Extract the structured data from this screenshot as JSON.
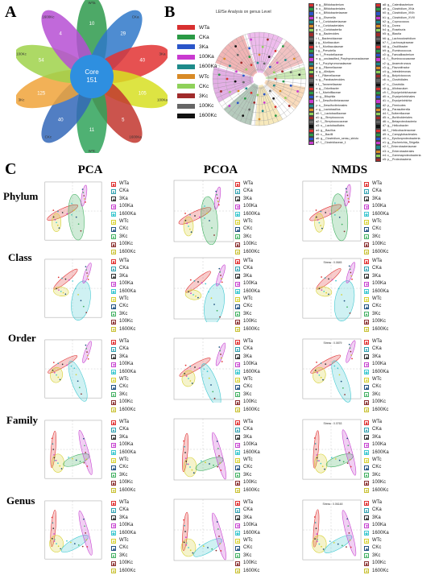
{
  "panels": {
    "a": "A",
    "b": "B",
    "c": "C"
  },
  "venn": {
    "core_label": "Core",
    "core_value": "151",
    "petals": [
      {
        "label": "WTa",
        "value": "10",
        "color": "#2e9a4c"
      },
      {
        "label": "CKa",
        "value": "29",
        "color": "#2f78c9"
      },
      {
        "label": "3Ka",
        "value": "40",
        "color": "#e23232"
      },
      {
        "label": "100Ka",
        "value": "105",
        "color": "#d7df22"
      },
      {
        "label": "1600Ka",
        "value": "5",
        "color": "#c2362e"
      },
      {
        "label": "WTc",
        "value": "11",
        "color": "#30a35a"
      },
      {
        "label": "CKc",
        "value": "40",
        "color": "#3367b8"
      },
      {
        "label": "3Kc",
        "value": "125",
        "color": "#f0a33a"
      },
      {
        "label": "100Kc",
        "value": "54",
        "color": "#9fd24a"
      },
      {
        "label": "1600Kc",
        "value": "4",
        "color": "#b64fd4"
      }
    ]
  },
  "lefse": {
    "title": "LEfSe Analysis on genus Level",
    "groups": [
      {
        "label": "WTa",
        "color": "#d83030"
      },
      {
        "label": "CKa",
        "color": "#2a9a45"
      },
      {
        "label": "3Ka",
        "color": "#2a55c9"
      },
      {
        "label": "100Ka",
        "color": "#c93ad0"
      },
      {
        "label": "1600Ka",
        "color": "#1d8a8a"
      },
      {
        "label": "WTc",
        "color": "#d88a26"
      },
      {
        "label": "CKc",
        "color": "#8fd15a"
      },
      {
        "label": "3Kc",
        "color": "#a02b2b"
      },
      {
        "label": "100Kc",
        "color": "#666666"
      },
      {
        "label": "1600Kc",
        "color": "#111111"
      }
    ],
    "taxa_col1": [
      "a: g__Bifidobacterium",
      "b: o__Bifidobacteriales",
      "c: o__Bifidobacteriaceae",
      "d: g__Eisenella",
      "e: f__Coriobacteriaceae",
      "f: o__Coriobacteriales",
      "g: o__Coriobacteriia",
      "h: g__Bacteroides",
      "i: f__Bacteroidaceae",
      "j: g__Muribaculum",
      "k: f__Muribaculaceae",
      "l: g__Prevotella",
      "m: f__Prevotellaceae",
      "n: g__unclassified_Porphyromonadaceae",
      "o: f__Porphyromonadaceae",
      "p: g__Rikenellaceae",
      "q: g__Alistipes",
      "r: f__Rikenellaceae",
      "s: g__Parabacteroides",
      "t: f__Tannerellaceae",
      "u: g__Odoribacter",
      "v: f__Marinifilaceae",
      "w: g__Bilophila",
      "x: f__Desulfovibrionaceae",
      "y: o__Desulfovibrionales",
      "z: g__Lactobacillus",
      "a0: f__Lactobacillaceae",
      "a1: g__Streptococcus",
      "a2: f__Streptococcaceae",
      "a3: o__Lactobacillales",
      "a4: g__Bacillus",
      "a5: c__Bacilli",
      "a6: g__Clostridium_sensu_stricto",
      "a7: f__Clostridiaceae_1"
    ],
    "taxa_col2": [
      "a8: g__Catenibacterium",
      "a9: g__Clostridium_XlVa",
      "b0: g__Clostridium_XlVb",
      "b1: g__Clostridium_XVIII",
      "b2: g__Coprococcus",
      "b3: g__Dorea",
      "b4: g__Roseburia",
      "b5: g__Blautia",
      "b6: g__Lachnoclostridium",
      "b7: f__Lachnospiraceae",
      "b8: g__Oscillibacter",
      "b9: g__Ruminococcus",
      "c0: g__Faecalibacterium",
      "c1: f__Ruminococcaceae",
      "c2: g__Anaerotruncus",
      "c3: g__Flavonifractor",
      "c4: g__Intestinimonas",
      "c5: g__Butyricicoccus",
      "c6: o__Clostridiales",
      "c7: c__Clostridia",
      "c8: g__Allobaculum",
      "c9: f__Erysipelotrichaceae",
      "d0: o__Erysipelotrichales",
      "d1: c__Erysipelotrichia",
      "d2: p__Firmicutes",
      "d3: g__Parasutterella",
      "d4: f__Sutterellaceae",
      "d5: o__Burkholderiales",
      "d6: c__Betaproteobacteria",
      "d7: g__Helicobacter",
      "d8: f__Helicobacteraceae",
      "d9: o__Campylobacterales",
      "e0: c__Epsilonproteobacteria",
      "e1: g__Escherichia_Shigella",
      "e2: f__Enterobacteriaceae",
      "e3: o__Enterobacterales",
      "e4: c__Gammaproteobacteria",
      "e5: p__Proteobacteria"
    ]
  },
  "ordination": {
    "columns": [
      "PCA",
      "PCOA",
      "NMDS"
    ],
    "rows": [
      "Phylum",
      "Class",
      "Order",
      "Family",
      "Genus"
    ],
    "legend": [
      {
        "label": "WTa",
        "symbol": "■",
        "color": "#e03030"
      },
      {
        "label": "CKa",
        "symbol": "●",
        "color": "#30a0b0"
      },
      {
        "label": "3Ka",
        "symbol": "▲",
        "color": "#303030"
      },
      {
        "label": "100Ka",
        "symbol": "▼",
        "color": "#c640d0"
      },
      {
        "label": "1600Ka",
        "symbol": "◆",
        "color": "#40c8d0"
      },
      {
        "label": "WTc",
        "symbol": "★",
        "color": "#d6d030"
      },
      {
        "label": "CKc",
        "symbol": "▲",
        "color": "#205080"
      },
      {
        "label": "3Kc",
        "symbol": "●",
        "color": "#40b060"
      },
      {
        "label": "100Kc",
        "symbol": "■",
        "color": "#8a3030"
      },
      {
        "label": "1600Kc",
        "symbol": "★",
        "color": "#c8c030"
      }
    ],
    "stress_labels": [
      "",
      "Stress : 0.0845",
      "Stress : 0.0879",
      "Stress : 0.0763",
      "Stress : 0.06148"
    ]
  }
}
